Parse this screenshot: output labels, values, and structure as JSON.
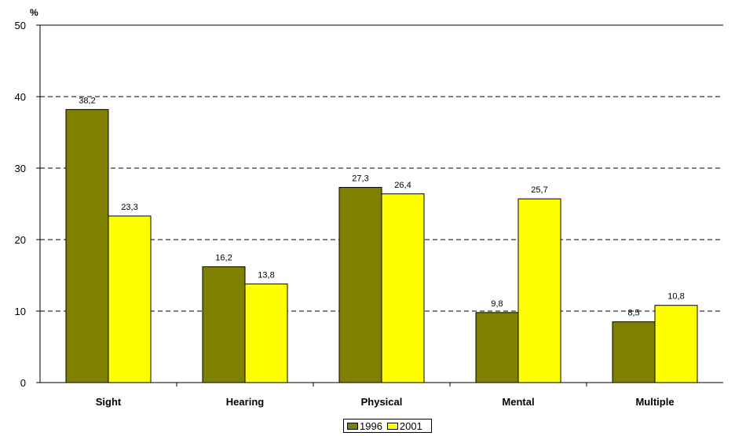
{
  "chart_data": {
    "type": "bar",
    "unit_label": "%",
    "categories": [
      "Sight",
      "Hearing",
      "Physical",
      "Mental",
      "Multiple"
    ],
    "series": [
      {
        "name": "1996",
        "values": [
          38.2,
          16.2,
          27.3,
          9.8,
          8.5
        ],
        "labels": [
          "38,2",
          "16,2",
          "27,3",
          "9,8",
          "8,5"
        ],
        "color": "#808000"
      },
      {
        "name": "2001",
        "values": [
          23.3,
          13.8,
          26.4,
          25.7,
          10.8
        ],
        "labels": [
          "23,3",
          "13,8",
          "26,4",
          "25,7",
          "10,8"
        ],
        "color": "#ffff00"
      }
    ],
    "yticks": [
      "0",
      "10",
      "20",
      "30",
      "40",
      "50"
    ],
    "ylim": [
      0,
      50
    ],
    "grid": "dashed-horizontal",
    "legend": "bottom-center"
  }
}
